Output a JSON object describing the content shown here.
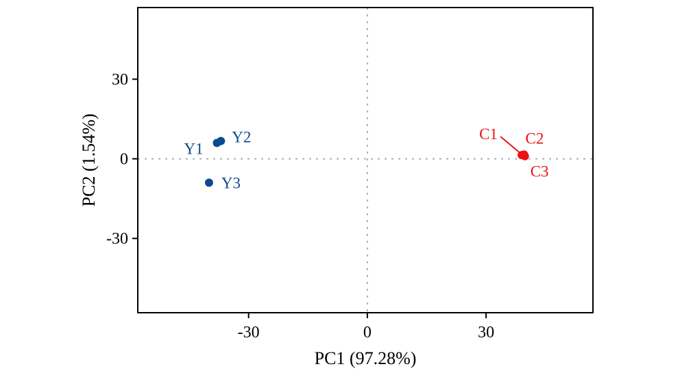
{
  "chart_data": {
    "type": "scatter",
    "title": "",
    "xlabel": "PC1 (97.28%)",
    "ylabel": "PC2 (1.54%)",
    "xlim": [
      -58,
      57
    ],
    "ylim": [
      -58,
      57
    ],
    "xticks": [
      -30,
      0,
      30
    ],
    "yticks": [
      30,
      0,
      -30
    ],
    "reference_lines": {
      "x": 0,
      "y": 0,
      "style": "dotted"
    },
    "grid": false,
    "legend": "none",
    "colors": {
      "Y": "#0b4a8e",
      "C": "#ee1111"
    },
    "groups": [
      {
        "group": "Y",
        "color": "#0b4a8e",
        "points": [
          {
            "label": "Y1",
            "x": -38.0,
            "y": 6.0
          },
          {
            "label": "Y2",
            "x": -37.0,
            "y": 6.7
          },
          {
            "label": "Y3",
            "x": -40.0,
            "y": -9.0
          }
        ]
      },
      {
        "group": "C",
        "color": "#ee1111",
        "points": [
          {
            "label": "C1",
            "x": 39.0,
            "y": 1.4
          },
          {
            "label": "C2",
            "x": 39.6,
            "y": 1.6
          },
          {
            "label": "C3",
            "x": 39.8,
            "y": 1.0
          }
        ]
      }
    ]
  }
}
